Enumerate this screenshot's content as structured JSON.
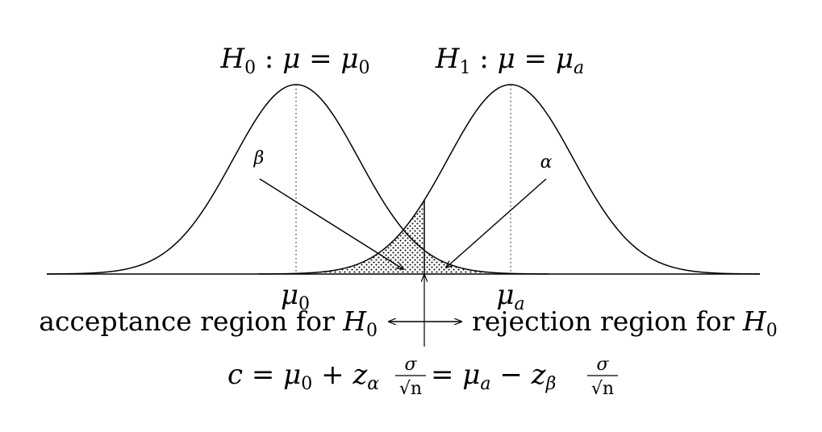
{
  "hypotheses": {
    "h0": {
      "var": "H",
      "sub": "0",
      "rest": " : ",
      "mu": "μ",
      "eq": " = ",
      "mu0": "μ",
      "mu0_sub": "0"
    },
    "h1": {
      "var": "H",
      "sub": "1",
      "rest": " : ",
      "mu": "μ",
      "eq": " = ",
      "mua": "μ",
      "mua_sub": "a"
    }
  },
  "error_labels": {
    "beta": "β",
    "alpha": "α"
  },
  "axis_labels": {
    "mu0": {
      "base": "μ",
      "sub": "0"
    },
    "mua": {
      "base": "μ",
      "sub": "a"
    }
  },
  "regions": {
    "acceptance": {
      "text": "acceptance region for ",
      "var": "H",
      "sub": "0"
    },
    "rejection": {
      "text": "rejection region for ",
      "var": "H",
      "sub": "0"
    }
  },
  "formula": {
    "c": "c",
    "eq1": " = ",
    "mu": "μ",
    "mu_sub0": "0",
    "plus": " + ",
    "z": "z",
    "z_sub_alpha": "α",
    "sigma": "σ",
    "sqrt_n": "√n",
    "eq2": " = ",
    "mu2": "μ",
    "mu_suba": "a",
    "minus": " − ",
    "z2": "z",
    "z_sub_beta": "β",
    "sigma2": "σ",
    "sqrt_n2": "√n"
  }
}
